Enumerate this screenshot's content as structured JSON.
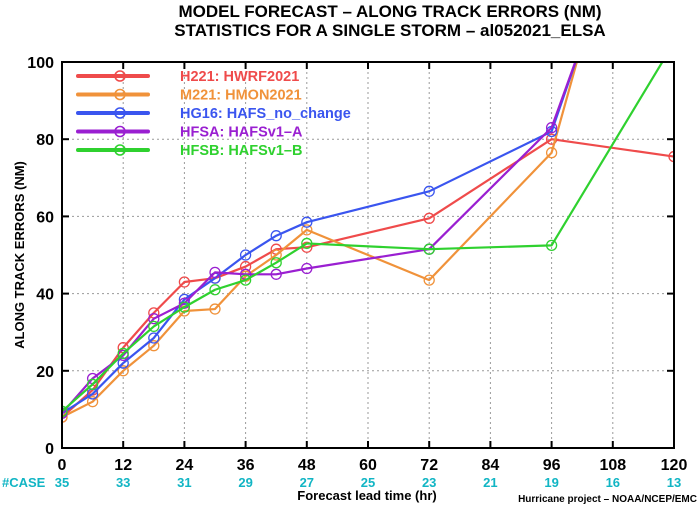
{
  "chart_data": {
    "type": "line",
    "title": "MODEL FORECAST – ALONG TRACK ERRORS (NM)",
    "subtitle": "STATISTICS FOR A SINGLE STORM – al052021_ELSA",
    "xlabel": "Forecast lead time (hr)",
    "ylabel": "ALONG TRACK ERRORS (NM)",
    "xlim": [
      0,
      120
    ],
    "ylim": [
      0,
      100
    ],
    "xticks": [
      "0",
      "12",
      "24",
      "36",
      "48",
      "60",
      "72",
      "84",
      "96",
      "108",
      "120"
    ],
    "yticks": [
      "0",
      "20",
      "40",
      "60",
      "80",
      "100"
    ],
    "grid": "dotted",
    "legend_position": "top-left",
    "case_label": "#CASE",
    "case_counts": [
      "35",
      "33",
      "31",
      "29",
      "27",
      "25",
      "23",
      "21",
      "19",
      "16",
      "13"
    ],
    "credit": "Hurricane project – NOAA/NCEP/EMC",
    "series": [
      {
        "name": "H221:  HWRF2021",
        "color": "#ef4b4b",
        "x": [
          0,
          6,
          12,
          18,
          24,
          30,
          36,
          42,
          48,
          72,
          96,
          120
        ],
        "y": [
          8,
          15,
          26,
          35,
          43,
          44,
          47,
          51.5,
          52,
          59.5,
          80,
          75.5
        ]
      },
      {
        "name": "M221:  HMON2021",
        "color": "#f0923a",
        "x": [
          0,
          6,
          12,
          18,
          24,
          30,
          36,
          42,
          48,
          72,
          96,
          102
        ],
        "y": [
          8,
          12,
          20,
          26.5,
          35.5,
          36,
          44.5,
          50,
          56.5,
          43.5,
          76.5,
          105
        ]
      },
      {
        "name": "HG16:  HAFS_no_change",
        "color": "#3a55ef",
        "x": [
          0,
          6,
          12,
          18,
          24,
          30,
          36,
          42,
          48,
          72,
          96,
          102
        ],
        "y": [
          9,
          14,
          22,
          28.5,
          38.5,
          44,
          50,
          55,
          58.5,
          66.5,
          82,
          105
        ]
      },
      {
        "name": "HFSA:  HAFSv1–A",
        "color": "#9a1fd1",
        "x": [
          0,
          6,
          12,
          18,
          24,
          30,
          36,
          42,
          48,
          72,
          96,
          102
        ],
        "y": [
          9,
          18,
          24,
          33.5,
          37.5,
          45.5,
          45,
          45,
          46.5,
          51.5,
          83,
          105
        ]
      },
      {
        "name": "HFSB:  HAFSv1–B",
        "color": "#2fd12f",
        "x": [
          0,
          6,
          12,
          18,
          24,
          30,
          36,
          42,
          48,
          72,
          96,
          120
        ],
        "y": [
          9.5,
          16.5,
          24.5,
          31.5,
          36.5,
          41,
          43.5,
          48,
          53,
          51.5,
          52.5,
          105
        ]
      }
    ]
  }
}
